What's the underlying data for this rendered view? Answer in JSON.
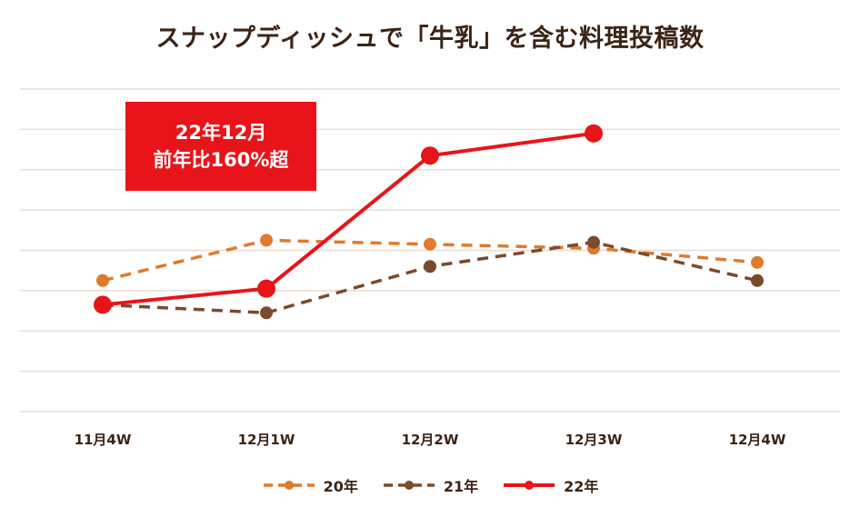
{
  "chart_data": {
    "type": "line",
    "title": "スナップディッシュで「牛乳」を含む料理投稿数",
    "categories": [
      "11月4W",
      "12月1W",
      "12月2W",
      "12月3W",
      "12月4W"
    ],
    "ylim": [
      0,
      8
    ],
    "grid": true,
    "series": [
      {
        "name": "20年",
        "values": [
          3.25,
          4.25,
          4.15,
          4.05,
          3.7
        ],
        "color": "#e07a2c",
        "style": "dashed",
        "marker": "small"
      },
      {
        "name": "21年",
        "values": [
          2.65,
          2.45,
          3.6,
          4.2,
          3.25
        ],
        "color": "#7a4a2c",
        "style": "dashed",
        "marker": "small"
      },
      {
        "name": "22年",
        "values": [
          2.65,
          3.05,
          6.35,
          6.9,
          null
        ],
        "color": "#e8141a",
        "style": "solid",
        "marker": "large"
      }
    ],
    "annotation": {
      "line1": "22年12月",
      "line2": "前年比160%超",
      "color": "#e8141a"
    },
    "legend_position": "bottom"
  }
}
